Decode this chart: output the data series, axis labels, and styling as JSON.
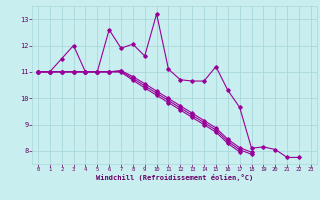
{
  "bg_color": "#c8eef0",
  "line_color": "#990099",
  "grid_color": "#aad8da",
  "xlabel": "Windchill (Refroidissement éolien,°C)",
  "xlabel_color": "#660066",
  "tick_color": "#660066",
  "xlim": [
    -0.5,
    23.5
  ],
  "ylim": [
    7.5,
    13.5
  ],
  "yticks": [
    8,
    9,
    10,
    11,
    12,
    13
  ],
  "xticks": [
    0,
    1,
    2,
    3,
    4,
    5,
    6,
    7,
    8,
    9,
    10,
    11,
    12,
    13,
    14,
    15,
    16,
    17,
    18,
    19,
    20,
    21,
    22,
    23
  ],
  "series": [
    [
      11.0,
      11.0,
      11.5,
      12.0,
      11.0,
      11.0,
      12.6,
      11.9,
      12.05,
      11.6,
      13.2,
      11.1,
      10.7,
      10.65,
      10.65,
      11.2,
      10.3,
      9.65,
      8.1,
      8.15,
      8.05,
      7.75,
      7.75,
      null
    ],
    [
      11.0,
      11.0,
      11.0,
      11.0,
      11.0,
      11.0,
      11.0,
      11.05,
      10.82,
      10.55,
      10.27,
      9.99,
      9.71,
      9.43,
      9.15,
      8.87,
      8.44,
      8.12,
      7.95,
      null,
      null,
      null,
      null,
      null
    ],
    [
      11.0,
      11.0,
      11.0,
      11.0,
      11.0,
      11.0,
      11.0,
      11.02,
      10.75,
      10.47,
      10.19,
      9.91,
      9.63,
      9.35,
      9.07,
      8.79,
      8.36,
      8.04,
      7.87,
      null,
      null,
      null,
      null,
      null
    ],
    [
      11.0,
      11.0,
      11.0,
      11.0,
      11.0,
      11.0,
      11.0,
      10.99,
      10.68,
      10.39,
      10.11,
      9.83,
      9.55,
      9.27,
      8.99,
      8.71,
      8.28,
      7.96,
      null,
      null,
      null,
      null,
      null,
      null
    ]
  ],
  "marker": "D",
  "markersize": 1.8,
  "linewidth": 0.8
}
